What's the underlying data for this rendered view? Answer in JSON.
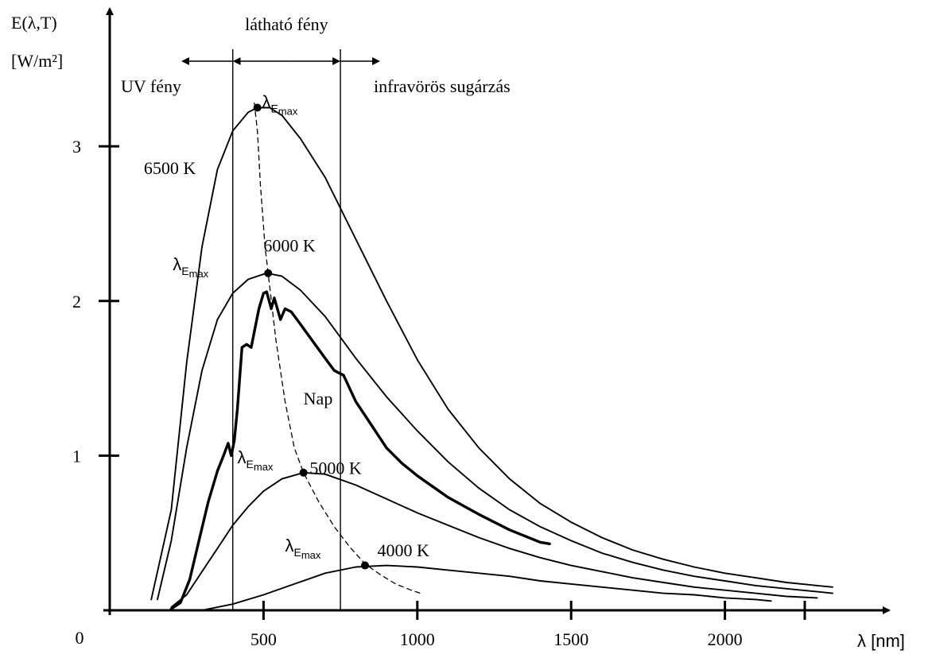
{
  "chart_data": {
    "type": "line",
    "title": "",
    "ylabel_line1": "E(λ,T)",
    "ylabel_line2": "[W/m²]",
    "xlabel": "λ  [nm]",
    "origin_label": "0",
    "x_ticks": [
      500,
      1000,
      1500,
      2000
    ],
    "y_ticks": [
      1,
      2,
      3
    ],
    "xlim": [
      0,
      2500
    ],
    "ylim": [
      0,
      3.9
    ],
    "grid": false,
    "regions": {
      "visible_label": "látható fény",
      "uv_label": "UV fény",
      "ir_label": "infravörös sugárzás",
      "visible_from": 400,
      "visible_to": 750
    },
    "peak_label_main": "λ",
    "peak_label_sub": "E",
    "peak_label_subsub": "max",
    "series": [
      {
        "name": "6500 K",
        "temperature": 6500,
        "points": [
          [
            135,
            0.07
          ],
          [
            200,
            0.65
          ],
          [
            250,
            1.6
          ],
          [
            300,
            2.35
          ],
          [
            350,
            2.85
          ],
          [
            400,
            3.1
          ],
          [
            450,
            3.22
          ],
          [
            480,
            3.25
          ],
          [
            520,
            3.25
          ],
          [
            560,
            3.2
          ],
          [
            620,
            3.05
          ],
          [
            700,
            2.8
          ],
          [
            800,
            2.4
          ],
          [
            900,
            2.0
          ],
          [
            1000,
            1.62
          ],
          [
            1100,
            1.3
          ],
          [
            1200,
            1.05
          ],
          [
            1300,
            0.85
          ],
          [
            1400,
            0.69
          ],
          [
            1500,
            0.57
          ],
          [
            1600,
            0.47
          ],
          [
            1700,
            0.39
          ],
          [
            1800,
            0.33
          ],
          [
            1900,
            0.28
          ],
          [
            2000,
            0.24
          ],
          [
            2100,
            0.21
          ],
          [
            2200,
            0.18
          ],
          [
            2300,
            0.16
          ],
          [
            2350,
            0.15
          ]
        ]
      },
      {
        "name": "6000 K",
        "temperature": 6000,
        "points": [
          [
            155,
            0.07
          ],
          [
            200,
            0.45
          ],
          [
            250,
            1.05
          ],
          [
            300,
            1.55
          ],
          [
            350,
            1.88
          ],
          [
            400,
            2.05
          ],
          [
            450,
            2.14
          ],
          [
            510,
            2.18
          ],
          [
            560,
            2.16
          ],
          [
            620,
            2.07
          ],
          [
            700,
            1.9
          ],
          [
            800,
            1.63
          ],
          [
            900,
            1.38
          ],
          [
            1000,
            1.16
          ],
          [
            1100,
            0.96
          ],
          [
            1200,
            0.79
          ],
          [
            1300,
            0.65
          ],
          [
            1400,
            0.54
          ],
          [
            1500,
            0.45
          ],
          [
            1600,
            0.37
          ],
          [
            1700,
            0.31
          ],
          [
            1800,
            0.26
          ],
          [
            1900,
            0.22
          ],
          [
            2000,
            0.19
          ],
          [
            2100,
            0.16
          ],
          [
            2200,
            0.14
          ],
          [
            2300,
            0.12
          ],
          [
            2350,
            0.11
          ]
        ]
      },
      {
        "name": "5000 K",
        "temperature": 5000,
        "points": [
          [
            200,
            0.02
          ],
          [
            250,
            0.1
          ],
          [
            300,
            0.25
          ],
          [
            350,
            0.4
          ],
          [
            400,
            0.55
          ],
          [
            450,
            0.67
          ],
          [
            500,
            0.77
          ],
          [
            560,
            0.85
          ],
          [
            630,
            0.89
          ],
          [
            700,
            0.88
          ],
          [
            800,
            0.81
          ],
          [
            900,
            0.72
          ],
          [
            1000,
            0.63
          ],
          [
            1100,
            0.55
          ],
          [
            1200,
            0.47
          ],
          [
            1300,
            0.4
          ],
          [
            1400,
            0.34
          ],
          [
            1500,
            0.29
          ],
          [
            1600,
            0.25
          ],
          [
            1700,
            0.21
          ],
          [
            1800,
            0.18
          ],
          [
            1900,
            0.15
          ],
          [
            2000,
            0.13
          ],
          [
            2100,
            0.11
          ],
          [
            2200,
            0.09
          ],
          [
            2300,
            0.08
          ]
        ]
      },
      {
        "name": "4000 K",
        "temperature": 4000,
        "points": [
          [
            300,
            0.0
          ],
          [
            400,
            0.04
          ],
          [
            500,
            0.1
          ],
          [
            600,
            0.17
          ],
          [
            700,
            0.24
          ],
          [
            800,
            0.28
          ],
          [
            900,
            0.29
          ],
          [
            1000,
            0.28
          ],
          [
            1100,
            0.26
          ],
          [
            1200,
            0.24
          ],
          [
            1300,
            0.22
          ],
          [
            1400,
            0.19
          ],
          [
            1500,
            0.17
          ],
          [
            1600,
            0.15
          ],
          [
            1700,
            0.13
          ],
          [
            1800,
            0.11
          ],
          [
            1900,
            0.1
          ],
          [
            2000,
            0.08
          ],
          [
            2100,
            0.07
          ],
          [
            2150,
            0.06
          ]
        ]
      },
      {
        "name": "Nap",
        "temperature": null,
        "points": [
          [
            200,
            0.01
          ],
          [
            230,
            0.05
          ],
          [
            260,
            0.2
          ],
          [
            290,
            0.45
          ],
          [
            320,
            0.7
          ],
          [
            350,
            0.9
          ],
          [
            370,
            1.0
          ],
          [
            385,
            1.08
          ],
          [
            395,
            1.0
          ],
          [
            405,
            1.1
          ],
          [
            415,
            1.3
          ],
          [
            430,
            1.7
          ],
          [
            445,
            1.72
          ],
          [
            460,
            1.7
          ],
          [
            475,
            1.85
          ],
          [
            485,
            1.95
          ],
          [
            500,
            2.05
          ],
          [
            510,
            2.06
          ],
          [
            525,
            1.95
          ],
          [
            535,
            2.02
          ],
          [
            555,
            1.88
          ],
          [
            570,
            1.95
          ],
          [
            590,
            1.93
          ],
          [
            620,
            1.85
          ],
          [
            660,
            1.74
          ],
          [
            700,
            1.63
          ],
          [
            730,
            1.55
          ],
          [
            760,
            1.52
          ],
          [
            800,
            1.35
          ],
          [
            850,
            1.2
          ],
          [
            900,
            1.05
          ],
          [
            950,
            0.95
          ],
          [
            1000,
            0.87
          ],
          [
            1050,
            0.8
          ],
          [
            1100,
            0.73
          ],
          [
            1200,
            0.62
          ],
          [
            1300,
            0.52
          ],
          [
            1400,
            0.44
          ],
          [
            1430,
            0.43
          ]
        ]
      },
      {
        "name": "Wien's displacement (λ max locus)",
        "style": "dashed",
        "points": [
          [
            470,
            3.28
          ],
          [
            480,
            3.1
          ],
          [
            490,
            2.75
          ],
          [
            505,
            2.35
          ],
          [
            515,
            2.18
          ],
          [
            540,
            1.75
          ],
          [
            570,
            1.35
          ],
          [
            600,
            1.05
          ],
          [
            630,
            0.89
          ],
          [
            680,
            0.7
          ],
          [
            730,
            0.54
          ],
          [
            780,
            0.41
          ],
          [
            830,
            0.3
          ],
          [
            880,
            0.23
          ],
          [
            930,
            0.17
          ],
          [
            980,
            0.13
          ],
          [
            1010,
            0.11
          ]
        ]
      }
    ],
    "peaks": [
      {
        "series": "6500 K",
        "x": 480,
        "y": 3.25
      },
      {
        "series": "6000 K",
        "x": 515,
        "y": 2.18
      },
      {
        "series": "5000 K",
        "x": 630,
        "y": 0.89
      },
      {
        "series": "4000 K",
        "x": 830,
        "y": 0.29
      }
    ],
    "curve_labels": [
      {
        "text": "6500 K",
        "x": 280,
        "y": 2.82,
        "anchor": "end"
      },
      {
        "text": "6000 K",
        "x": 500,
        "y": 2.32,
        "anchor": "start"
      },
      {
        "text": "5000 K",
        "x": 650,
        "y": 0.88,
        "anchor": "start"
      },
      {
        "text": "4000 K",
        "x": 870,
        "y": 0.35,
        "anchor": "start"
      },
      {
        "text": "Nap",
        "x": 630,
        "y": 1.33,
        "anchor": "start"
      }
    ],
    "peak_labels": [
      {
        "x": 495,
        "y": 3.25
      },
      {
        "x": 205,
        "y": 2.2
      },
      {
        "x": 415,
        "y": 0.95
      },
      {
        "x": 570,
        "y": 0.38
      }
    ]
  }
}
